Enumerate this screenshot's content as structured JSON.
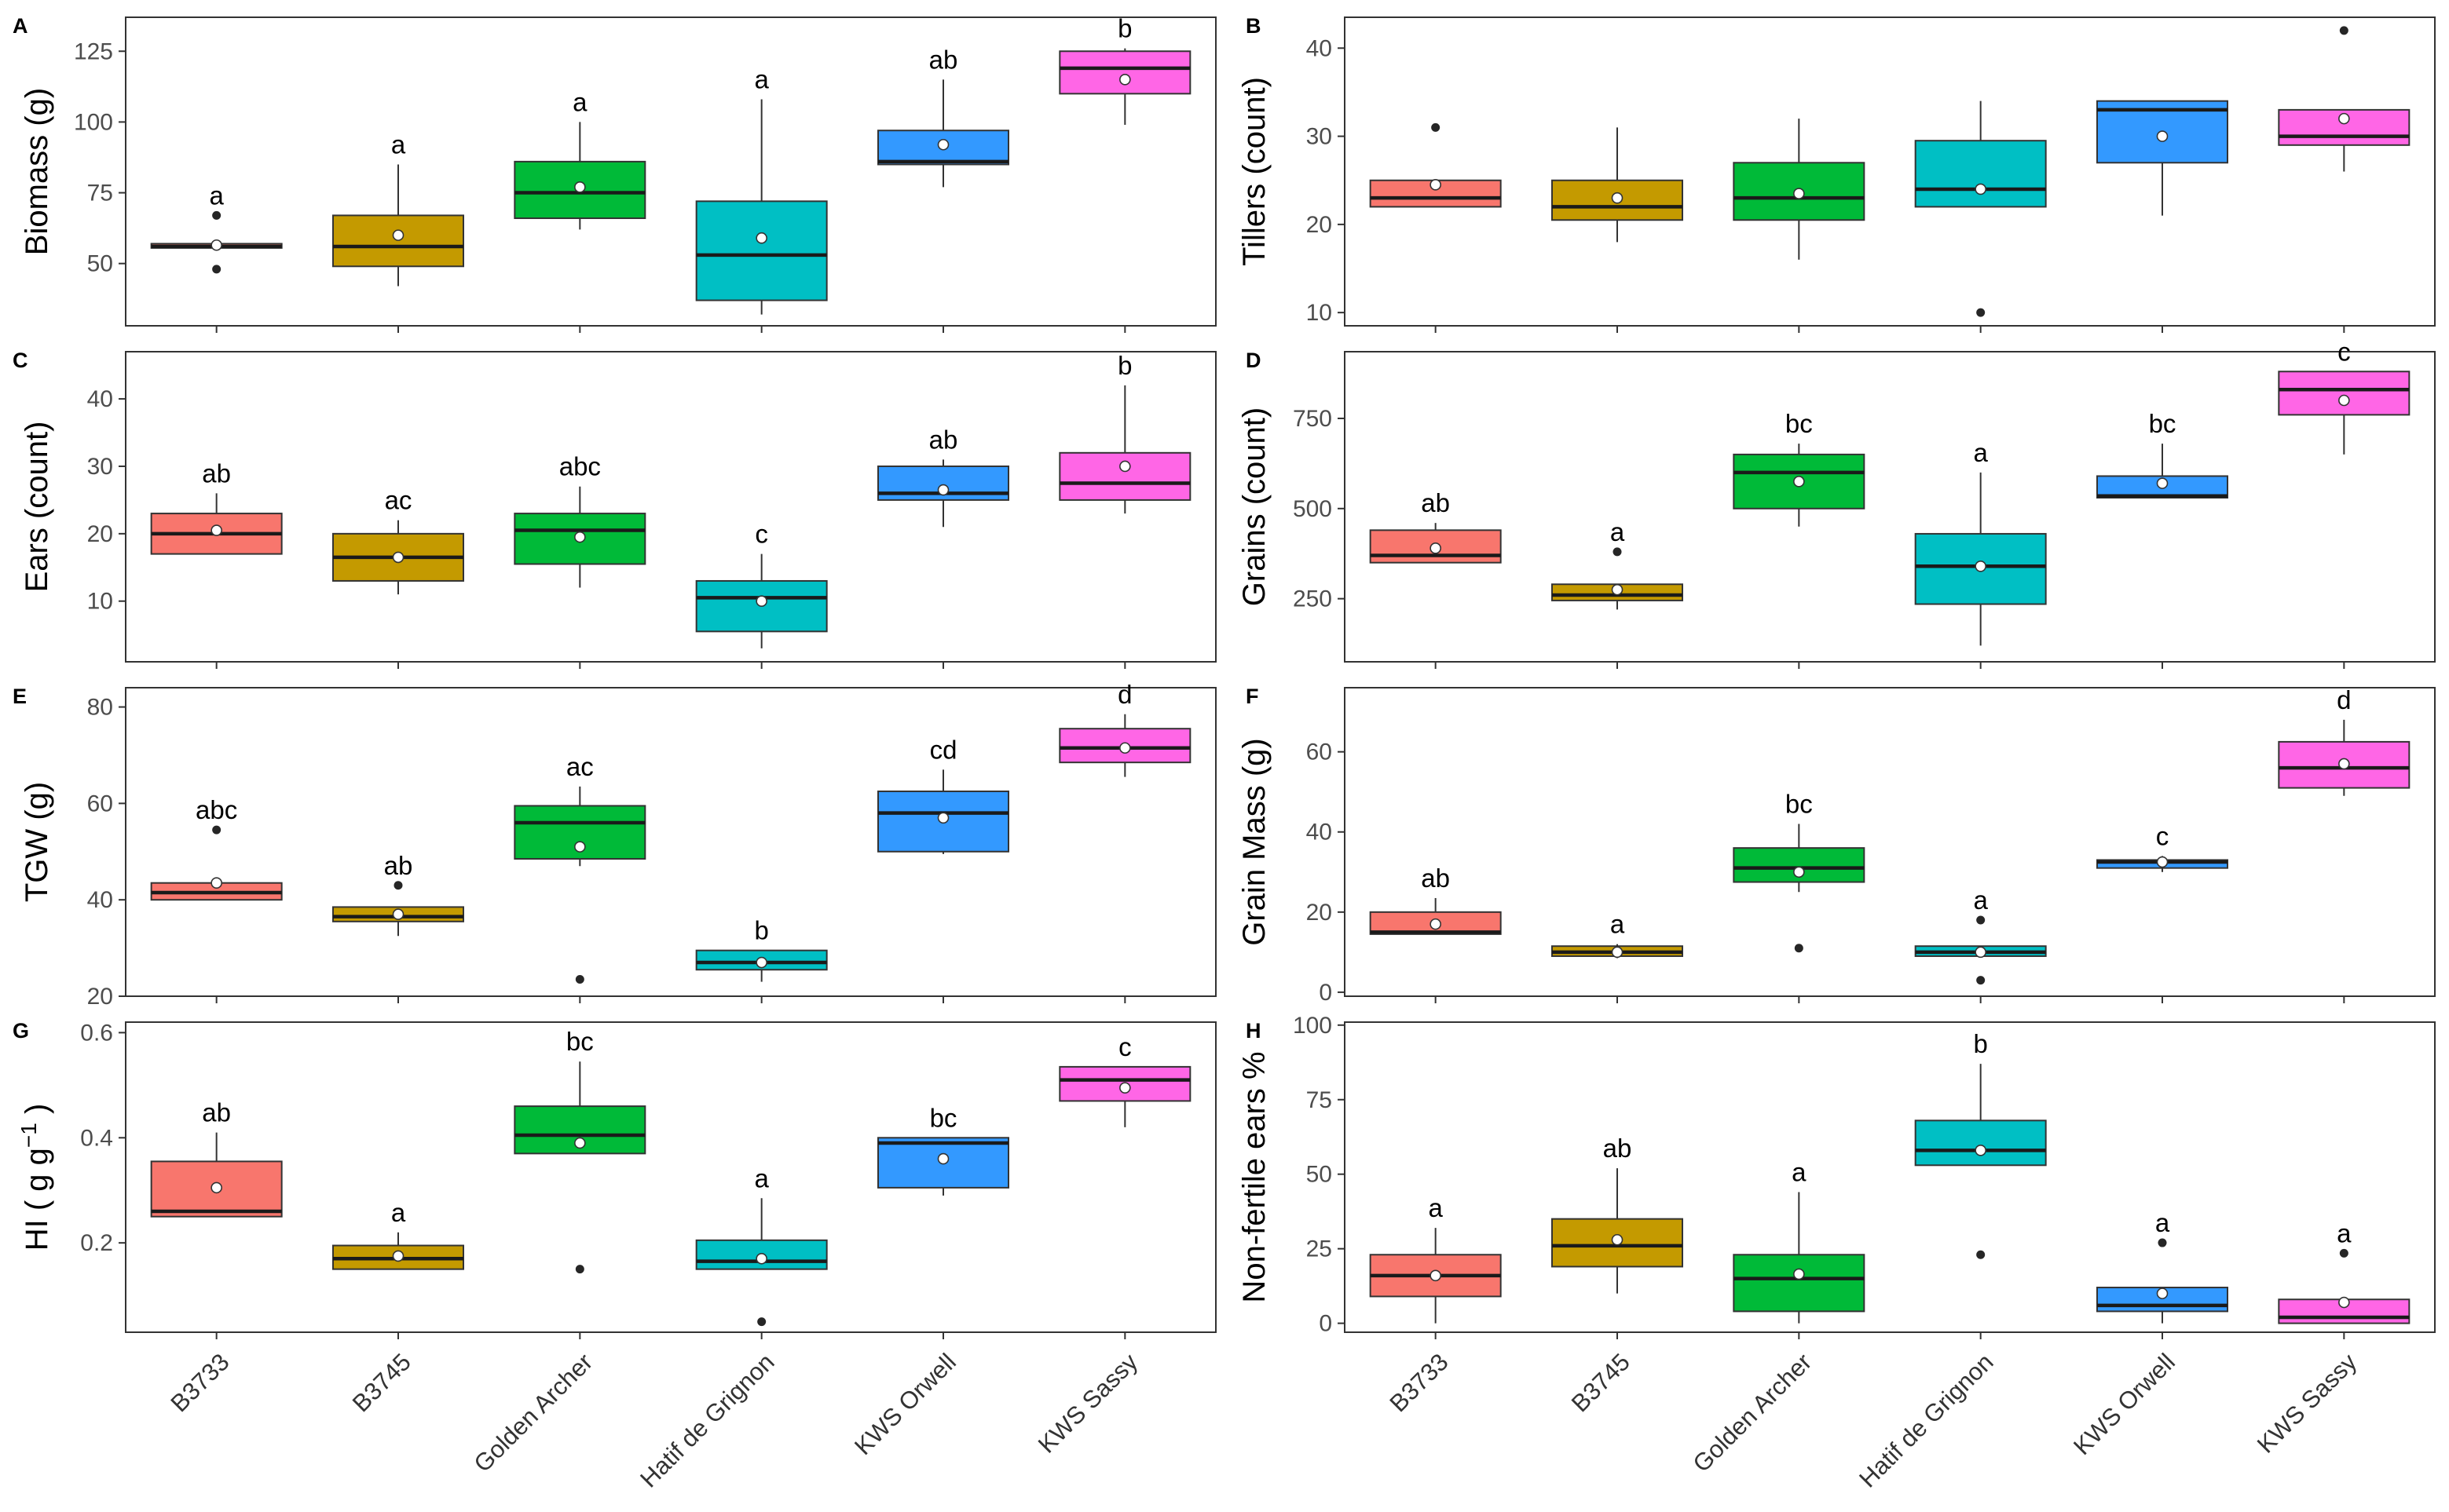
{
  "categories": [
    "B3733",
    "B3745",
    "Golden Archer",
    "Hatif de Grignon",
    "KWS Orwell",
    "KWS Sassy"
  ],
  "colors": [
    "#f8766d",
    "#c49a00",
    "#00ba38",
    "#00bfc4",
    "#3399ff",
    "#ff66e6"
  ],
  "chart_data": [
    {
      "type": "box",
      "panel": "A",
      "ylabel": "Biomass (g)",
      "ylim": [
        28,
        137
      ],
      "yticks": [
        50,
        75,
        100,
        125
      ],
      "boxes": [
        {
          "category": "B3733",
          "min": 55,
          "q1": 55.5,
          "median": 56,
          "q3": 57,
          "max": 57,
          "mean": 56.5,
          "outliers": [
            48,
            67
          ],
          "letter": "a"
        },
        {
          "category": "B3745",
          "min": 42,
          "q1": 49,
          "median": 56,
          "q3": 67,
          "max": 85,
          "mean": 60,
          "outliers": [],
          "letter": "a"
        },
        {
          "category": "Golden Archer",
          "min": 62,
          "q1": 66,
          "median": 75,
          "q3": 86,
          "max": 100,
          "mean": 77,
          "outliers": [],
          "letter": "a"
        },
        {
          "category": "Hatif de Grignon",
          "min": 32,
          "q1": 37,
          "median": 53,
          "q3": 72,
          "max": 108,
          "mean": 59,
          "outliers": [],
          "letter": "a"
        },
        {
          "category": "KWS Orwell",
          "min": 77,
          "q1": 85,
          "median": 86,
          "q3": 97,
          "max": 115,
          "mean": 92,
          "outliers": [],
          "letter": "ab"
        },
        {
          "category": "KWS Sassy",
          "min": 99,
          "q1": 110,
          "median": 119,
          "q3": 125,
          "max": 126,
          "mean": 115,
          "outliers": [],
          "letter": "b"
        }
      ]
    },
    {
      "type": "box",
      "panel": "B",
      "ylabel": "Tillers (count)",
      "ylim": [
        8.5,
        43.5
      ],
      "yticks": [
        10,
        20,
        30,
        40
      ],
      "boxes": [
        {
          "category": "B3733",
          "min": 22,
          "q1": 22,
          "median": 23,
          "q3": 25,
          "max": 25,
          "mean": 24.5,
          "outliers": [
            31
          ],
          "letter": ""
        },
        {
          "category": "B3745",
          "min": 18,
          "q1": 20.5,
          "median": 22,
          "q3": 25,
          "max": 31,
          "mean": 23,
          "outliers": [],
          "letter": ""
        },
        {
          "category": "Golden Archer",
          "min": 16,
          "q1": 20.5,
          "median": 23,
          "q3": 27,
          "max": 32,
          "mean": 23.5,
          "outliers": [],
          "letter": ""
        },
        {
          "category": "Hatif de Grignon",
          "min": 22,
          "q1": 22,
          "median": 24,
          "q3": 29.5,
          "max": 34,
          "mean": 24,
          "outliers": [
            10
          ],
          "letter": ""
        },
        {
          "category": "KWS Orwell",
          "min": 21,
          "q1": 27,
          "median": 33,
          "q3": 34,
          "max": 34,
          "mean": 30,
          "outliers": [],
          "letter": ""
        },
        {
          "category": "KWS Sassy",
          "min": 26,
          "q1": 29,
          "median": 30,
          "q3": 33,
          "max": 33,
          "mean": 32,
          "outliers": [
            42
          ],
          "letter": ""
        }
      ]
    },
    {
      "type": "box",
      "panel": "C",
      "ylabel": "Ears (count)",
      "ylim": [
        1,
        47
      ],
      "yticks": [
        10,
        20,
        30,
        40
      ],
      "boxes": [
        {
          "category": "B3733",
          "min": 17,
          "q1": 17,
          "median": 20,
          "q3": 23,
          "max": 26,
          "mean": 20.5,
          "outliers": [],
          "letter": "ab"
        },
        {
          "category": "B3745",
          "min": 11,
          "q1": 13,
          "median": 16.5,
          "q3": 20,
          "max": 22,
          "mean": 16.5,
          "outliers": [],
          "letter": "ac"
        },
        {
          "category": "Golden Archer",
          "min": 12,
          "q1": 15.5,
          "median": 20.5,
          "q3": 23,
          "max": 27,
          "mean": 19.5,
          "outliers": [],
          "letter": "abc"
        },
        {
          "category": "Hatif de Grignon",
          "min": 3,
          "q1": 5.5,
          "median": 10.5,
          "q3": 13,
          "max": 17,
          "mean": 10,
          "outliers": [],
          "letter": "c"
        },
        {
          "category": "KWS Orwell",
          "min": 21,
          "q1": 25,
          "median": 26,
          "q3": 30,
          "max": 31,
          "mean": 26.5,
          "outliers": [],
          "letter": "ab"
        },
        {
          "category": "KWS Sassy",
          "min": 23,
          "q1": 25,
          "median": 27.5,
          "q3": 32,
          "max": 42,
          "mean": 30,
          "outliers": [],
          "letter": "b"
        }
      ]
    },
    {
      "type": "box",
      "panel": "D",
      "ylabel": "Grains (count)",
      "ylim": [
        75,
        935
      ],
      "yticks": [
        250,
        500,
        750
      ],
      "boxes": [
        {
          "category": "B3733",
          "min": 350,
          "q1": 350,
          "median": 370,
          "q3": 440,
          "max": 460,
          "mean": 390,
          "outliers": [],
          "letter": "ab"
        },
        {
          "category": "B3745",
          "min": 220,
          "q1": 245,
          "median": 260,
          "q3": 290,
          "max": 290,
          "mean": 275,
          "outliers": [
            380
          ],
          "letter": "a"
        },
        {
          "category": "Golden Archer",
          "min": 450,
          "q1": 500,
          "median": 600,
          "q3": 650,
          "max": 680,
          "mean": 575,
          "outliers": [],
          "letter": "bc"
        },
        {
          "category": "Hatif de Grignon",
          "min": 120,
          "q1": 235,
          "median": 340,
          "q3": 430,
          "max": 600,
          "mean": 340,
          "outliers": [],
          "letter": "a"
        },
        {
          "category": "KWS Orwell",
          "min": 530,
          "q1": 530,
          "median": 535,
          "q3": 590,
          "max": 680,
          "mean": 570,
          "outliers": [],
          "letter": "bc"
        },
        {
          "category": "KWS Sassy",
          "min": 650,
          "q1": 760,
          "median": 830,
          "q3": 880,
          "max": 880,
          "mean": 800,
          "outliers": [],
          "letter": "c"
        }
      ]
    },
    {
      "type": "box",
      "panel": "E",
      "ylabel": "TGW (g)",
      "ylim": [
        20,
        84
      ],
      "yticks": [
        20,
        40,
        60,
        80
      ],
      "boxes": [
        {
          "category": "B3733",
          "min": 40,
          "q1": 40,
          "median": 41.5,
          "q3": 43.5,
          "max": 43.5,
          "mean": 43.5,
          "outliers": [
            54.5
          ],
          "letter": "abc"
        },
        {
          "category": "B3745",
          "min": 32.5,
          "q1": 35.5,
          "median": 36.5,
          "q3": 38.5,
          "max": 38.5,
          "mean": 37,
          "outliers": [
            43
          ],
          "letter": "ab"
        },
        {
          "category": "Golden Archer",
          "min": 47,
          "q1": 48.5,
          "median": 56,
          "q3": 59.5,
          "max": 63.5,
          "mean": 51,
          "outliers": [
            23.5
          ],
          "letter": "ac"
        },
        {
          "category": "Hatif de Grignon",
          "min": 23,
          "q1": 25.5,
          "median": 27,
          "q3": 29.5,
          "max": 29.5,
          "mean": 27,
          "outliers": [],
          "letter": "b"
        },
        {
          "category": "KWS Orwell",
          "min": 49.5,
          "q1": 50,
          "median": 58,
          "q3": 62.5,
          "max": 67,
          "mean": 57,
          "outliers": [],
          "letter": "cd"
        },
        {
          "category": "KWS Sassy",
          "min": 65.5,
          "q1": 68.5,
          "median": 71.5,
          "q3": 75.5,
          "max": 78.5,
          "mean": 71.5,
          "outliers": [],
          "letter": "d"
        }
      ]
    },
    {
      "type": "box",
      "panel": "F",
      "ylabel": "Grain Mass (g)",
      "ylim": [
        -1,
        76
      ],
      "yticks": [
        0,
        20,
        40,
        60
      ],
      "boxes": [
        {
          "category": "B3733",
          "min": 14.5,
          "q1": 14.5,
          "median": 15,
          "q3": 20,
          "max": 23.5,
          "mean": 17,
          "outliers": [],
          "letter": "ab"
        },
        {
          "category": "B3745",
          "min": 8.5,
          "q1": 9,
          "median": 10,
          "q3": 11.5,
          "max": 12,
          "mean": 10,
          "outliers": [],
          "letter": "a"
        },
        {
          "category": "Golden Archer",
          "min": 25,
          "q1": 27.5,
          "median": 31,
          "q3": 36,
          "max": 42,
          "mean": 30,
          "outliers": [
            11
          ],
          "letter": "bc"
        },
        {
          "category": "Hatif de Grignon",
          "min": 9,
          "q1": 9,
          "median": 10,
          "q3": 11.5,
          "max": 11.5,
          "mean": 10,
          "outliers": [
            3,
            18
          ],
          "letter": "a"
        },
        {
          "category": "KWS Orwell",
          "min": 30,
          "q1": 31,
          "median": 32.5,
          "q3": 33,
          "max": 34,
          "mean": 32.5,
          "outliers": [],
          "letter": "c"
        },
        {
          "category": "KWS Sassy",
          "min": 49,
          "q1": 51,
          "median": 56,
          "q3": 62.5,
          "max": 68,
          "mean": 57,
          "outliers": [],
          "letter": "d"
        }
      ]
    },
    {
      "type": "box",
      "panel": "G",
      "ylabel": "HI ( g g⁻¹ )",
      "ylim": [
        0.03,
        0.62
      ],
      "yticks": [
        0.2,
        0.4,
        0.6
      ],
      "boxes": [
        {
          "category": "B3733",
          "min": 0.25,
          "q1": 0.25,
          "median": 0.26,
          "q3": 0.355,
          "max": 0.41,
          "mean": 0.305,
          "outliers": [],
          "letter": "ab"
        },
        {
          "category": "B3745",
          "min": 0.15,
          "q1": 0.15,
          "median": 0.17,
          "q3": 0.195,
          "max": 0.22,
          "mean": 0.175,
          "outliers": [],
          "letter": "a"
        },
        {
          "category": "Golden Archer",
          "min": 0.37,
          "q1": 0.37,
          "median": 0.405,
          "q3": 0.46,
          "max": 0.545,
          "mean": 0.39,
          "outliers": [
            0.15
          ],
          "letter": "bc"
        },
        {
          "category": "Hatif de Grignon",
          "min": 0.15,
          "q1": 0.15,
          "median": 0.165,
          "q3": 0.205,
          "max": 0.285,
          "mean": 0.17,
          "outliers": [
            0.05
          ],
          "letter": "a"
        },
        {
          "category": "KWS Orwell",
          "min": 0.29,
          "q1": 0.305,
          "median": 0.39,
          "q3": 0.4,
          "max": 0.4,
          "mean": 0.36,
          "outliers": [],
          "letter": "bc"
        },
        {
          "category": "KWS Sassy",
          "min": 0.42,
          "q1": 0.47,
          "median": 0.51,
          "q3": 0.535,
          "max": 0.535,
          "mean": 0.495,
          "outliers": [],
          "letter": "c"
        }
      ]
    },
    {
      "type": "box",
      "panel": "H",
      "ylabel": "Non-fertile ears %",
      "ylim": [
        -3,
        101
      ],
      "yticks": [
        0,
        25,
        50,
        75,
        100
      ],
      "boxes": [
        {
          "category": "B3733",
          "min": 0,
          "q1": 9,
          "median": 16,
          "q3": 23,
          "max": 32,
          "mean": 16,
          "outliers": [],
          "letter": "a"
        },
        {
          "category": "B3745",
          "min": 10,
          "q1": 19,
          "median": 26,
          "q3": 35,
          "max": 52,
          "mean": 28,
          "outliers": [],
          "letter": "ab"
        },
        {
          "category": "Golden Archer",
          "min": 0,
          "q1": 4,
          "median": 15,
          "q3": 23,
          "max": 44,
          "mean": 16.5,
          "outliers": [],
          "letter": "a"
        },
        {
          "category": "Hatif de Grignon",
          "min": 53,
          "q1": 53,
          "median": 58,
          "q3": 68,
          "max": 87,
          "mean": 58,
          "outliers": [
            23
          ],
          "letter": "b"
        },
        {
          "category": "KWS Orwell",
          "min": 0,
          "q1": 4,
          "median": 6,
          "q3": 12,
          "max": 12,
          "mean": 10,
          "outliers": [
            27
          ],
          "letter": "a"
        },
        {
          "category": "KWS Sassy",
          "min": 0,
          "q1": 0,
          "median": 2,
          "q3": 8,
          "max": 8,
          "mean": 7,
          "outliers": [
            23.5
          ],
          "letter": "a"
        }
      ]
    }
  ]
}
